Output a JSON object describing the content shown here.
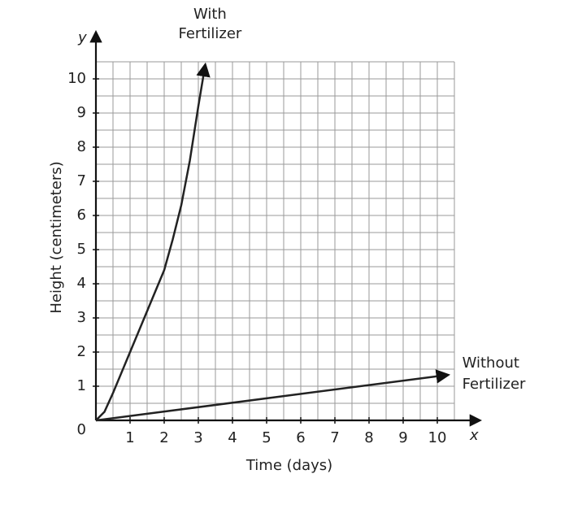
{
  "chart_data": {
    "type": "line",
    "x_label": "Time (days)",
    "y_label": "Height (centimeters)",
    "x_axis_letter": "x",
    "y_axis_letter": "y",
    "xlim": [
      0,
      10.5
    ],
    "ylim": [
      0,
      10.5
    ],
    "xticks": [
      1,
      2,
      3,
      4,
      5,
      6,
      7,
      8,
      9,
      10
    ],
    "yticks": [
      0,
      1,
      2,
      3,
      4,
      5,
      6,
      7,
      8,
      9,
      10
    ],
    "grid": true,
    "grid_step": 0.5,
    "series": [
      {
        "name": [
          "With",
          "Fertilizer"
        ],
        "color": "#222222",
        "x": [
          0,
          0.25,
          0.5,
          0.75,
          1,
          1.25,
          1.5,
          1.75,
          2,
          2.25,
          2.5,
          2.75,
          3,
          3.2
        ],
        "values": [
          0,
          0.25,
          0.8,
          1.4,
          2.0,
          2.6,
          3.2,
          3.8,
          4.4,
          5.3,
          6.3,
          7.6,
          9.2,
          10.4
        ]
      },
      {
        "name": [
          "Without",
          "Fertilizer"
        ],
        "color": "#222222",
        "x": [
          0,
          10.3
        ],
        "values": [
          0,
          1.33
        ]
      }
    ]
  }
}
